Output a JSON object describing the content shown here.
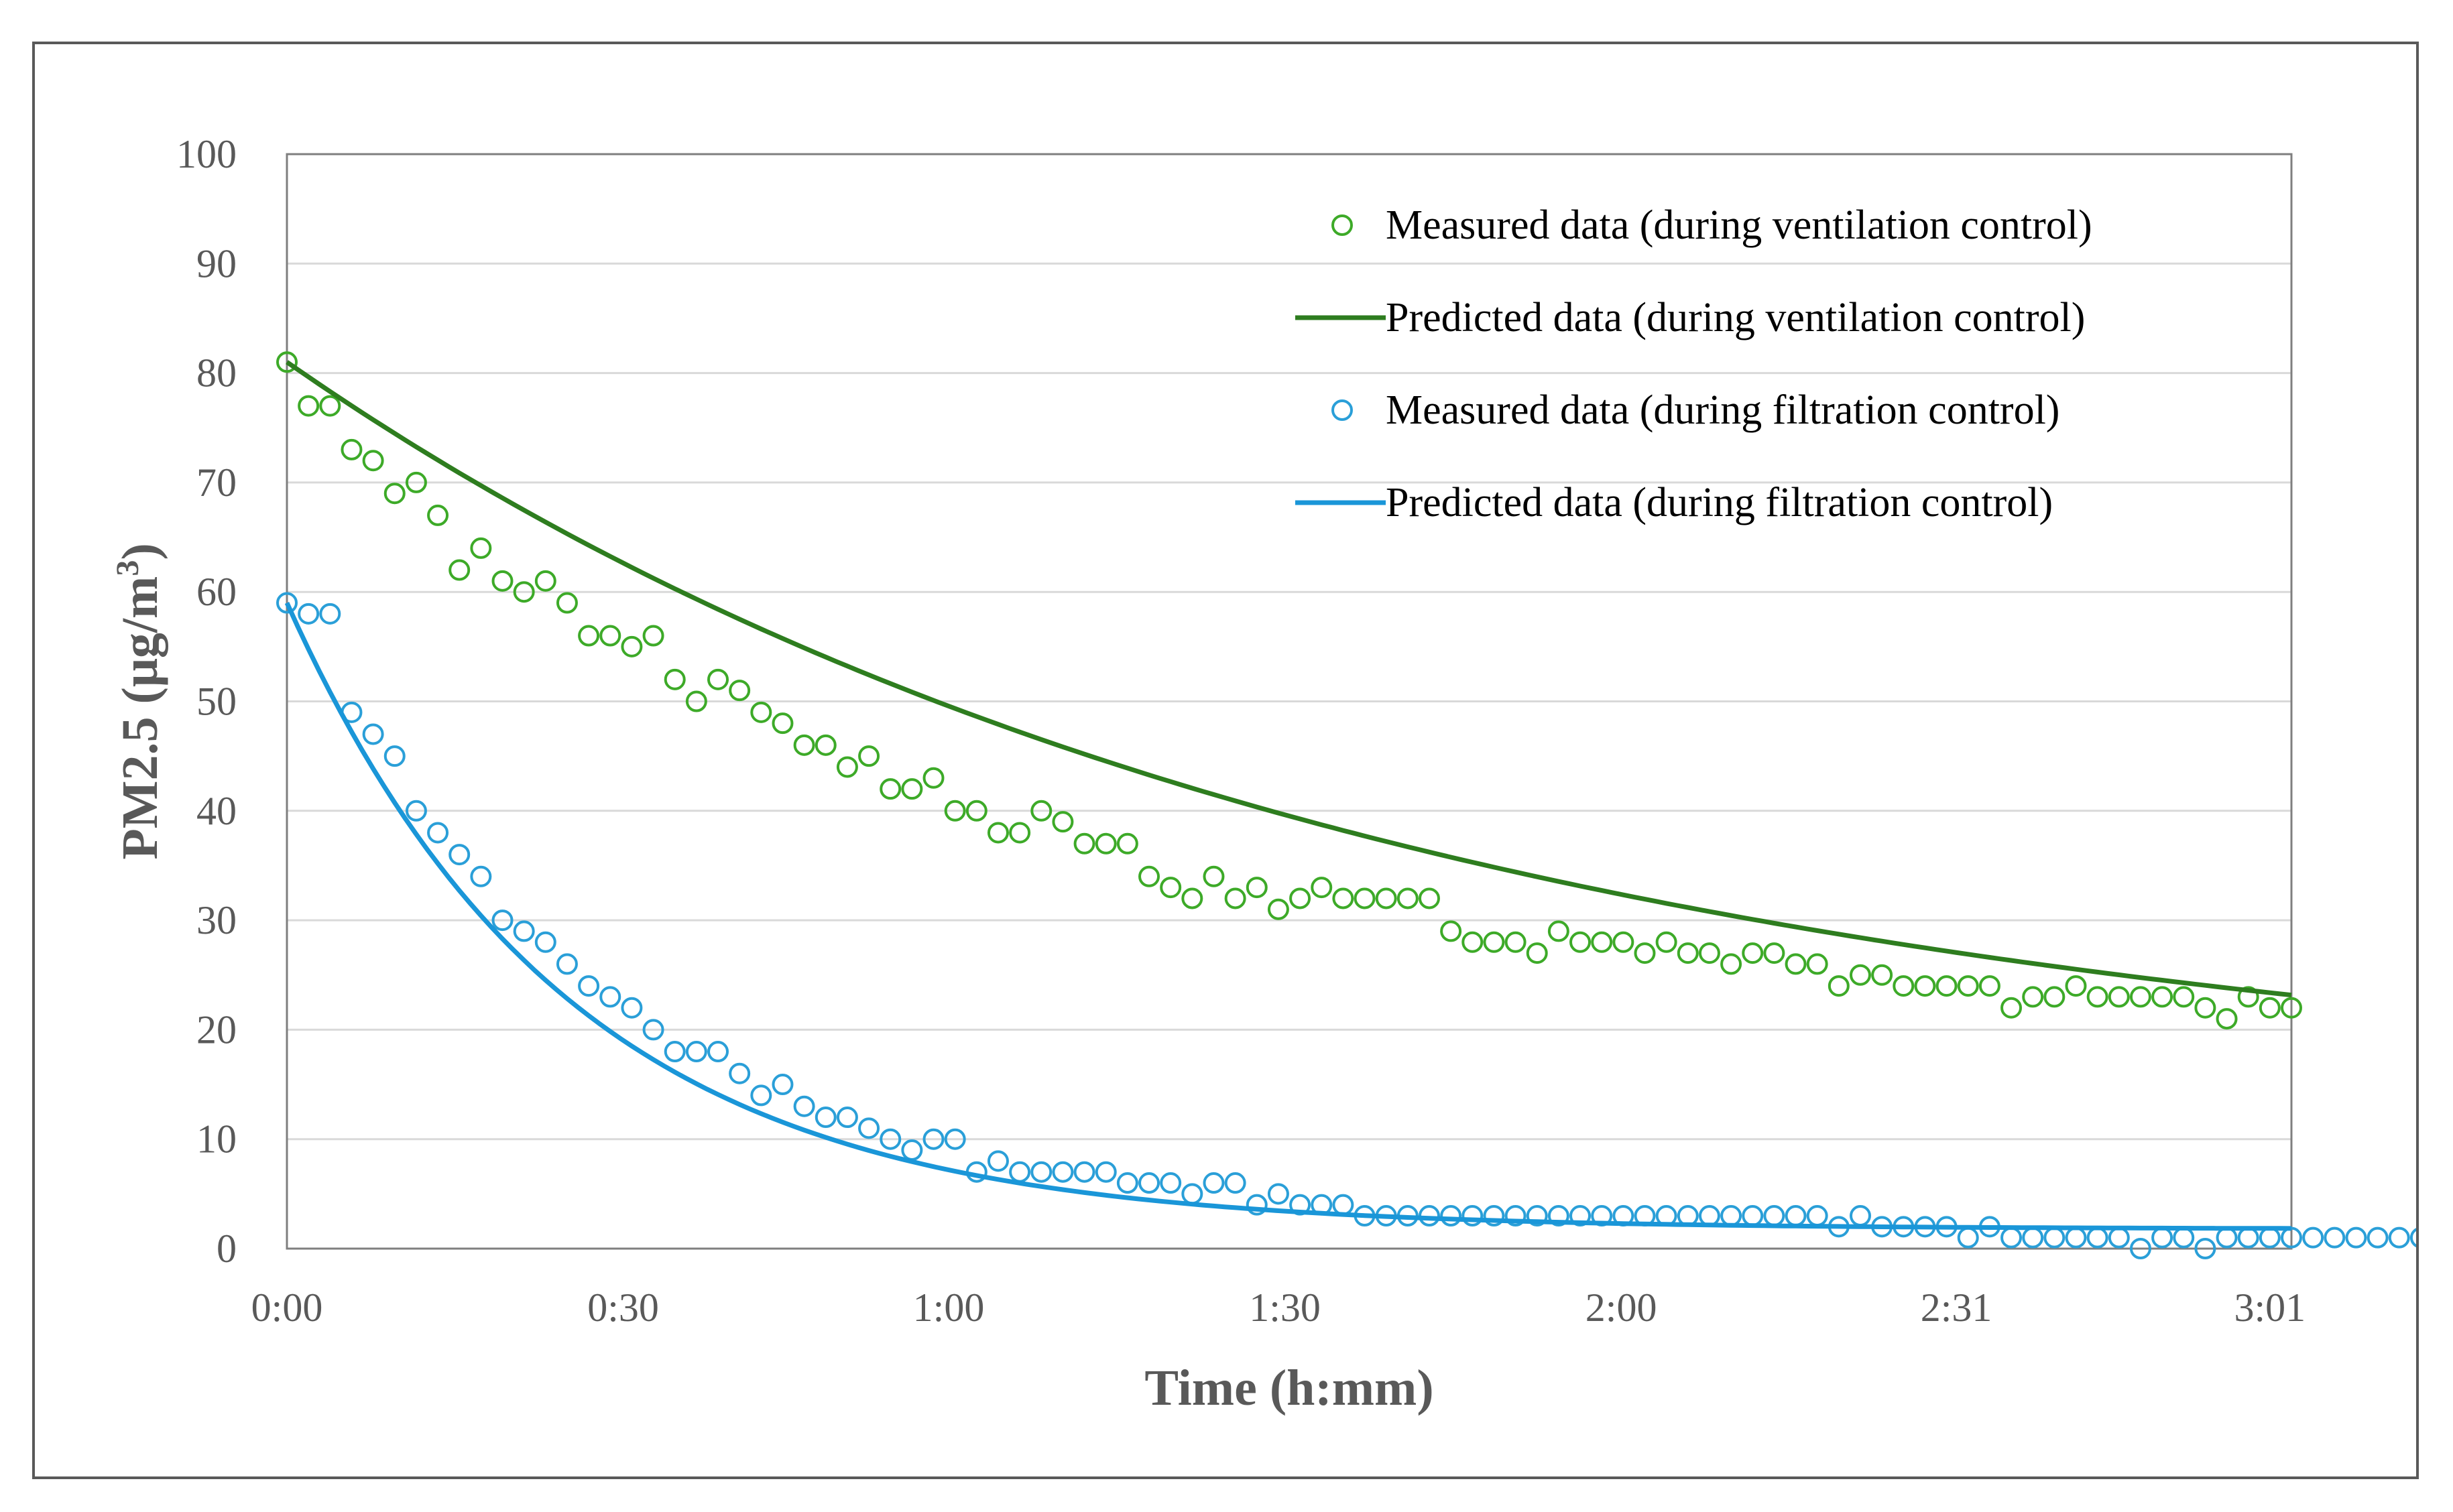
{
  "chart_data": {
    "type": "scatter",
    "title": "",
    "xlabel": "Time (h:mm)",
    "ylabel_main": "PM2.5 (μg/m",
    "ylabel_sup": "3",
    "ylabel_close": ")",
    "ylim": [
      0,
      100
    ],
    "xlim_minutes": [
      0,
      186
    ],
    "y_ticks": [
      0,
      10,
      20,
      30,
      40,
      50,
      60,
      70,
      80,
      90,
      100
    ],
    "x_ticks": [
      {
        "label": "0:00",
        "minutes": 0
      },
      {
        "label": "0:30",
        "minutes": 31.2
      },
      {
        "label": "1:00",
        "minutes": 61.4
      },
      {
        "label": "1:30",
        "minutes": 92.6
      },
      {
        "label": "2:00",
        "minutes": 123.8
      },
      {
        "label": "2:31",
        "minutes": 154.9
      },
      {
        "label": "3:01",
        "minutes": 184
      }
    ],
    "grid": "horizontal",
    "legend_position": "top-right",
    "sample_interval_minutes": 2,
    "series": [
      {
        "name": "Measured data (during ventilation control)",
        "kind": "markers",
        "color": "#3daa28",
        "values": [
          81,
          77,
          77,
          73,
          72,
          69,
          70,
          67,
          62,
          64,
          61,
          60,
          61,
          59,
          56,
          56,
          55,
          56,
          52,
          50,
          52,
          51,
          49,
          48,
          46,
          46,
          44,
          45,
          42,
          42,
          43,
          40,
          40,
          38,
          38,
          40,
          39,
          37,
          37,
          37,
          34,
          33,
          32,
          34,
          32,
          33,
          31,
          32,
          33,
          32,
          32,
          32,
          32,
          32,
          29,
          28,
          28,
          28,
          27,
          29,
          28,
          28,
          28,
          27,
          28,
          27,
          27,
          26,
          27,
          27,
          26,
          26,
          24,
          25,
          25,
          24,
          24,
          24,
          24,
          24,
          22,
          23,
          23,
          24,
          23,
          23,
          23,
          23,
          23,
          22,
          21,
          23,
          22,
          22
        ]
      },
      {
        "name": "Predicted data (during ventilation control)",
        "kind": "line",
        "color": "#2e7d1f",
        "model": {
          "asymptote": 12.5,
          "initial": 81,
          "tau_minutes": 100
        }
      },
      {
        "name": "Measured data (during filtration control)",
        "kind": "markers",
        "color": "#2a9fd8",
        "values": [
          59,
          58,
          58,
          49,
          47,
          45,
          40,
          38,
          36,
          34,
          30,
          29,
          28,
          26,
          24,
          23,
          22,
          20,
          18,
          18,
          18,
          16,
          14,
          15,
          13,
          12,
          12,
          11,
          10,
          9,
          10,
          10,
          7,
          8,
          7,
          7,
          7,
          7,
          7,
          6,
          6,
          6,
          5,
          6,
          6,
          4,
          5,
          4,
          4,
          4,
          3,
          3,
          3,
          3,
          3,
          3,
          3,
          3,
          3,
          3,
          3,
          3,
          3,
          3,
          3,
          3,
          3,
          3,
          3,
          3,
          3,
          3,
          2,
          3,
          2,
          2,
          2,
          2,
          1,
          2,
          1,
          1,
          1,
          1,
          1,
          1,
          0,
          1,
          1,
          0,
          1,
          1,
          1,
          1,
          1,
          1,
          1,
          1,
          1,
          1
        ]
      },
      {
        "name": "Predicted data (during filtration control)",
        "kind": "line",
        "color": "#1a96d8",
        "model": {
          "asymptote": 1.8,
          "initial": 59,
          "tau_minutes": 26
        }
      }
    ]
  }
}
